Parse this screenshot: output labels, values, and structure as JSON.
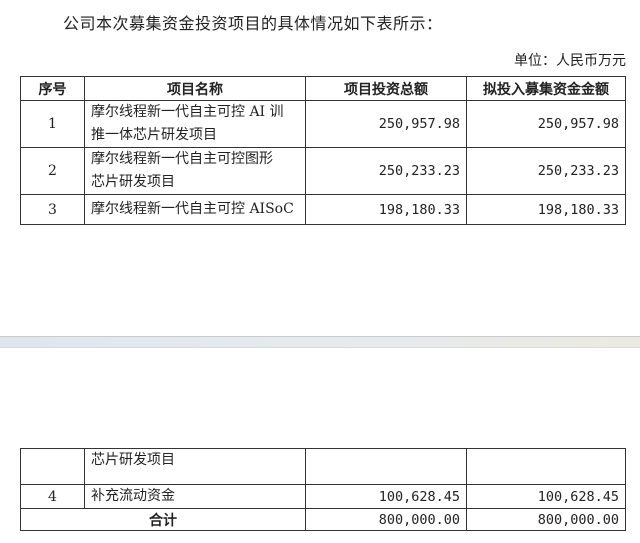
{
  "intro": "公司本次募集资金投资项目的具体情况如下表所示：",
  "unit": "单位：人民币万元",
  "table": {
    "headers": [
      "序号",
      "项目名称",
      "项目投资总额",
      "拟投入募集资金金额"
    ],
    "rows": [
      {
        "no": "1",
        "name_line1": "摩尔线程新一代自主可控 AI 训",
        "name_line2": "推一体芯片研发项目",
        "total": "250,957.98",
        "raised": "250,957.98"
      },
      {
        "no": "2",
        "name_line1": "摩尔线程新一代自主可控图形",
        "name_line2": "芯片研发项目",
        "total": "250,233.23",
        "raised": "250,233.23"
      },
      {
        "no": "3",
        "name_line1": "摩尔线程新一代自主可控 AISoC",
        "total": "198,180.33",
        "raised": "198,180.33"
      }
    ],
    "continued_row": {
      "name": "芯片研发项目"
    },
    "row4": {
      "no": "4",
      "name": "补充流动资金",
      "total": "100,628.45",
      "raised": "100,628.45"
    },
    "sum": {
      "label": "合计",
      "total": "800,000.00",
      "raised": "800,000.00"
    }
  }
}
